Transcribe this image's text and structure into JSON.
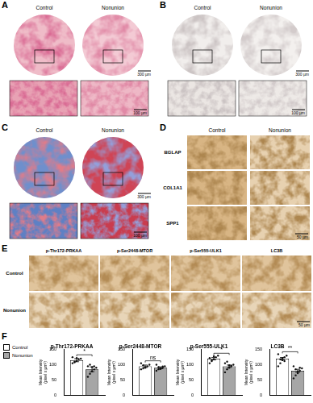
{
  "figure": {
    "A": {
      "label": "A",
      "columns": [
        "Control",
        "Nonunion"
      ],
      "scale_bars": [
        "300 µm",
        "100 µm"
      ]
    },
    "B": {
      "label": "B",
      "columns": [
        "Control",
        "Nonunion"
      ],
      "scale_bars": [
        "300 µm",
        "100 µm"
      ]
    },
    "C": {
      "label": "C",
      "columns": [
        "Control",
        "Nonunion"
      ],
      "scale_bars": [
        "300 µm",
        "100 µm"
      ]
    },
    "D": {
      "label": "D",
      "columns": [
        "Control",
        "Nonunion"
      ],
      "rows": [
        "BGLAP",
        "COL1A1",
        "SPP1"
      ],
      "scale_bar": "50 µm"
    },
    "E": {
      "label": "E",
      "columns": [
        "p-Thr172-PRKAA",
        "p-Ser2448-MTOR",
        "p-Ser555-ULK1",
        "LC3B"
      ],
      "rows": [
        "Control",
        "Nonunion"
      ],
      "scale_bar": "50 µm"
    },
    "F": {
      "label": "F"
    }
  },
  "chart_data": [
    {
      "type": "bar",
      "title": "p-Thr172-PRKAA",
      "y_label": [
        "Mean Intensity",
        "(pixel x µm²)"
      ],
      "categories": [
        null
      ],
      "ylim": [
        0,
        150
      ],
      "yticks": [
        0,
        50,
        100,
        150
      ],
      "grid": false,
      "tick_labels": "y",
      "legend": "left",
      "significance": "*",
      "series": [
        {
          "name": "Control",
          "color": "#ffffff",
          "values": [
            115
          ],
          "error": [
            5
          ],
          "points": [
            [
              105,
              110,
              112,
              118,
              120,
              125,
              108,
              122
            ]
          ]
        },
        {
          "name": "Nonunion",
          "color": "#a6a6a6",
          "values": [
            85
          ],
          "error": [
            8
          ],
          "points": [
            [
              60,
              70,
              78,
              85,
              90,
              95,
              100,
              92,
              95
            ]
          ]
        }
      ]
    },
    {
      "type": "bar",
      "title": "p-Ser2448-MTOR",
      "y_label": [
        "Mean Intensity",
        "(pixel x µm²)"
      ],
      "categories": [
        null
      ],
      "ylim": [
        0,
        150
      ],
      "yticks": [
        0,
        50,
        100,
        150
      ],
      "grid": false,
      "tick_labels": "y",
      "significance": "ns",
      "series": [
        {
          "name": "Control",
          "color": "#ffffff",
          "values": [
            95
          ],
          "error": [
            4
          ],
          "points": [
            [
              85,
              88,
              92,
              95,
              100,
              105,
              98,
              90
            ]
          ]
        },
        {
          "name": "Nonunion",
          "color": "#a6a6a6",
          "values": [
            90
          ],
          "error": [
            3
          ],
          "points": [
            [
              80,
              85,
              88,
              90,
              95,
              100,
              92,
              86,
              94
            ]
          ]
        }
      ]
    },
    {
      "type": "bar",
      "title": "p-Ser555-ULK1",
      "y_label": [
        "Mean Intensity",
        "(pixel x µm²)"
      ],
      "categories": [
        null
      ],
      "ylim": [
        0,
        150
      ],
      "yticks": [
        0,
        50,
        100,
        150
      ],
      "grid": false,
      "tick_labels": "y",
      "significance": "*",
      "series": [
        {
          "name": "Control",
          "color": "#ffffff",
          "values": [
            120
          ],
          "error": [
            4
          ],
          "points": [
            [
              105,
              112,
              118,
              125,
              130,
              122,
              115,
              128
            ]
          ]
        },
        {
          "name": "Nonunion",
          "color": "#a6a6a6",
          "values": [
            95
          ],
          "error": [
            4
          ],
          "points": [
            [
              75,
              85,
              90,
              95,
              100,
              105,
              110,
              98,
              97
            ]
          ]
        }
      ]
    },
    {
      "type": "bar",
      "title": "LC3B",
      "y_label": [
        "Mean Intensity",
        "(pixel x µm²)"
      ],
      "categories": [
        null
      ],
      "ylim": [
        0,
        150
      ],
      "yticks": [
        0,
        50,
        100,
        150
      ],
      "grid": false,
      "tick_labels": "y",
      "significance": "**",
      "series": [
        {
          "name": "Control",
          "color": "#ffffff",
          "values": [
            120
          ],
          "error": [
            4
          ],
          "points": [
            [
              95,
              105,
              115,
              125,
              130,
              135,
              118,
              122,
              112
            ]
          ]
        },
        {
          "name": "Nonunion",
          "color": "#a6a6a6",
          "values": [
            80
          ],
          "error": [
            5
          ],
          "points": [
            [
              55,
              65,
              72,
              80,
              88,
              95,
              85,
              78,
              90
            ]
          ]
        }
      ]
    }
  ]
}
